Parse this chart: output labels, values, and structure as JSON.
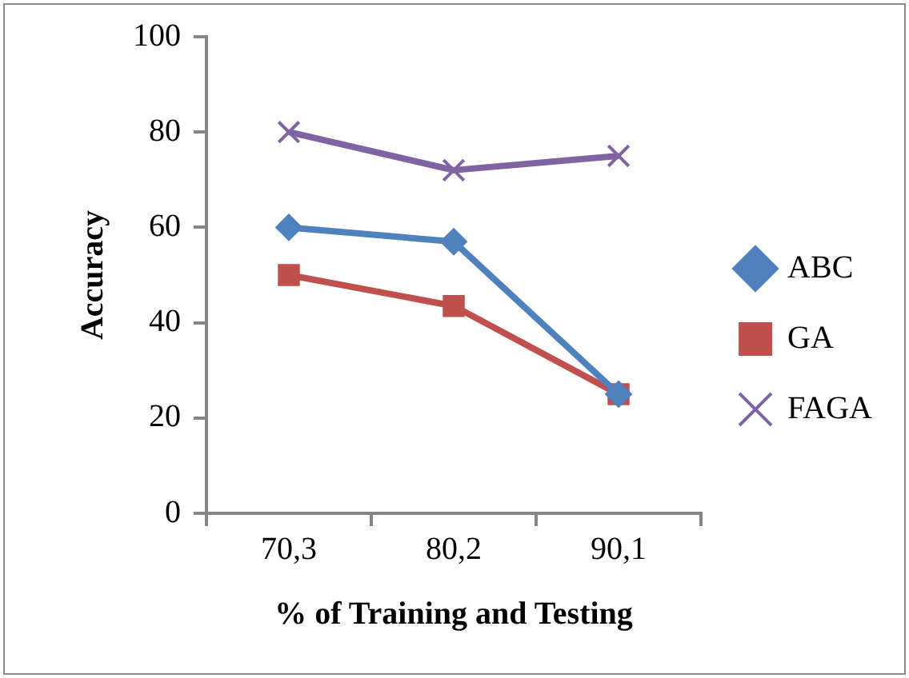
{
  "chart_data": {
    "type": "line",
    "xlabel": "% of Training and Testing",
    "ylabel": "Accuracy",
    "categories": [
      "70,3",
      "80,2",
      "90,1"
    ],
    "series": [
      {
        "name": "ABC",
        "color": "#4f81bd",
        "values": [
          60,
          57,
          25
        ],
        "marker": "diamond"
      },
      {
        "name": "GA",
        "color": "#c0504d",
        "values": [
          50,
          43.5,
          25
        ],
        "marker": "square"
      },
      {
        "name": "FAGA",
        "color": "#8064a2",
        "values": [
          80,
          72,
          75
        ],
        "marker": "cross"
      }
    ],
    "ylim": [
      0,
      100
    ],
    "yticks": [
      0,
      20,
      40,
      60,
      80,
      100
    ],
    "grid": false,
    "legend": "right"
  }
}
